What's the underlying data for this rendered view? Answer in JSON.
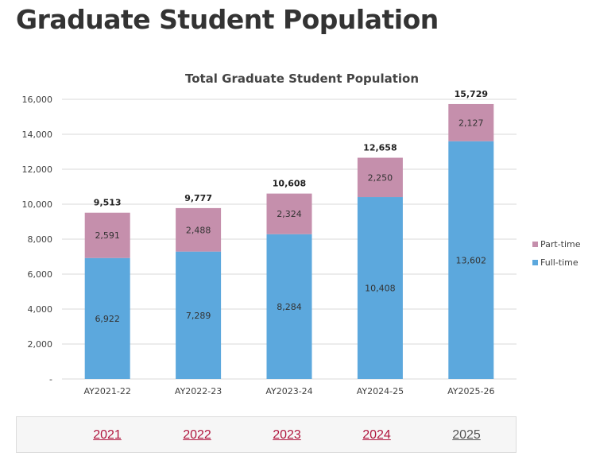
{
  "page": {
    "title": "Graduate Student Population"
  },
  "chart_data": {
    "type": "bar",
    "stacked": true,
    "title": "Total Graduate Student Population",
    "xlabel": "",
    "ylabel": "",
    "categories": [
      "AY2021-22",
      "AY2022-23",
      "AY2023-24",
      "AY2024-25",
      "AY2025-26"
    ],
    "series": [
      {
        "name": "Full-time",
        "values": [
          6922,
          7289,
          8284,
          10408,
          13602
        ],
        "color": "#5ca8dd"
      },
      {
        "name": "Part-time",
        "values": [
          2591,
          2488,
          2324,
          2250,
          2127
        ],
        "color": "#c58fac"
      }
    ],
    "totals": [
      9513,
      9777,
      10608,
      12658,
      15729
    ],
    "total_labels": [
      "9,513",
      "9,777",
      "10,608",
      "12,658",
      "15,729"
    ],
    "segment_labels": {
      "Full-time": [
        "6,922",
        "7,289",
        "8,284",
        "10,408",
        "13,602"
      ],
      "Part-time": [
        "2,591",
        "2,488",
        "2,324",
        "2,250",
        "2,127"
      ]
    },
    "ylim": [
      0,
      16000
    ],
    "yticks": [
      0,
      2000,
      4000,
      6000,
      8000,
      10000,
      12000,
      14000,
      16000
    ],
    "ytick_labels": [
      "-",
      "2,000",
      "4,000",
      "6,000",
      "8,000",
      "10,000",
      "12,000",
      "14,000",
      "16,000"
    ],
    "grid": true,
    "legend_position": "right",
    "legend_order": [
      "Part-time",
      "Full-time"
    ]
  },
  "year_nav": {
    "items": [
      {
        "label": "2021",
        "current": false
      },
      {
        "label": "2022",
        "current": false
      },
      {
        "label": "2023",
        "current": false
      },
      {
        "label": "2024",
        "current": false
      },
      {
        "label": "2025",
        "current": true
      }
    ]
  }
}
